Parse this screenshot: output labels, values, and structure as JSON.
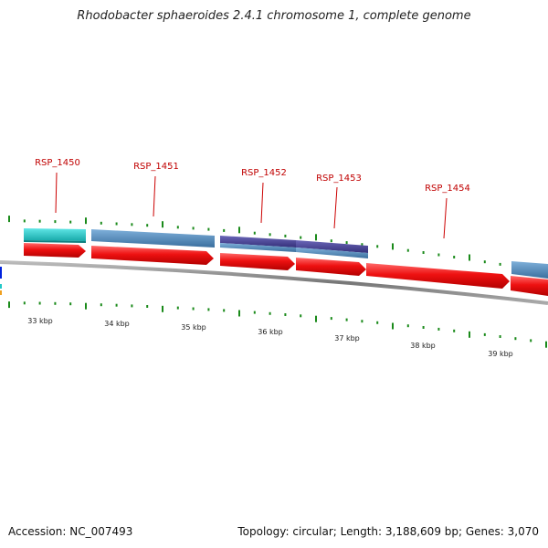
{
  "title": "Rhodobacter sphaeroides 2.4.1 chromosome 1, complete genome",
  "footer": {
    "accession": "Accession: NC_007493",
    "summary": "Topology: circular; Length: 3,188,609 bp; Genes: 3,070"
  },
  "gene_labels": [
    "RSP_1450",
    "RSP_1451",
    "RSP_1452",
    "RSP_1453",
    "RSP_1454"
  ],
  "kbp_labels": [
    "33 kbp",
    "34 kbp",
    "35 kbp",
    "36 kbp",
    "37 kbp",
    "38 kbp",
    "39 kbp"
  ],
  "colors": {
    "cds": "#ee1111",
    "teal_feature": "#22c8c8",
    "blue_feature": "#4f86b8",
    "purple_feature": "#4a4490",
    "backbone": "#888888",
    "tick": "#1a8a1a",
    "label": "#c00000"
  }
}
